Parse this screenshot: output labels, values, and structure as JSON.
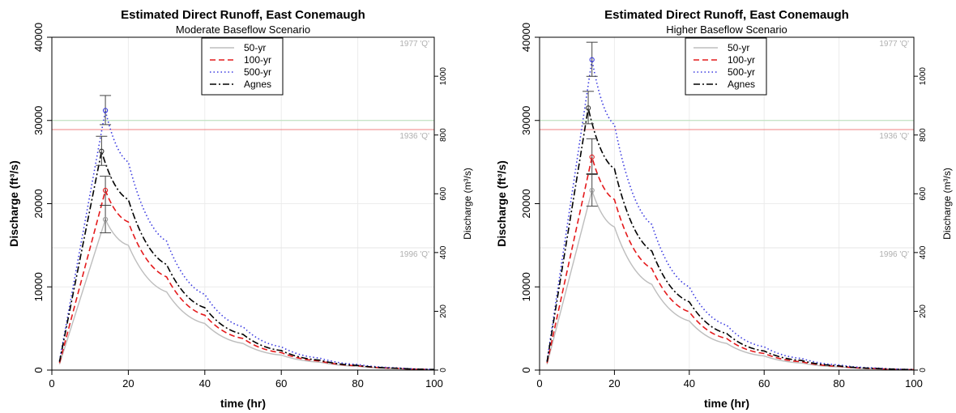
{
  "chart_data": [
    {
      "type": "line",
      "title": "Estimated Direct Runoff, East Conemaugh",
      "subtitle": "Moderate Baseflow Scenario",
      "xlabel": "time (hr)",
      "ylabel": "Discharge (ft³/s)",
      "ylabel_right": "Discharge (m³/s)",
      "xlim": [
        0,
        100
      ],
      "ylim": [
        0,
        40000
      ],
      "x_ticks": [
        "0",
        "20",
        "40",
        "60",
        "80",
        "100"
      ],
      "y_ticks": [
        "0",
        "10000",
        "20000",
        "30000",
        "40000"
      ],
      "y_right_ticks": [
        "0",
        "200",
        "400",
        "600",
        "800",
        "1000"
      ],
      "grid": true,
      "legend_position": "top-center",
      "reference_lines": [
        {
          "label": "1977 'Q'",
          "value": 40000,
          "color": "#a89480"
        },
        {
          "label": "1936 'Q'",
          "value": 28900,
          "color": "#f08080"
        },
        {
          "label": "",
          "value": 30000,
          "color": "#b8e0b8"
        },
        {
          "label": "1996 'Q'",
          "value": 14700,
          "color": "#e4e4e4"
        }
      ],
      "series": [
        {
          "name": "50-yr",
          "color": "#bdbdbd",
          "style": "solid",
          "peak": 18100,
          "points": [
            [
              2,
              700
            ],
            [
              14,
              18100
            ],
            [
              20,
              15000
            ],
            [
              30,
              9400
            ],
            [
              40,
              5600
            ],
            [
              50,
              3200
            ],
            [
              60,
              1800
            ],
            [
              70,
              950
            ],
            [
              80,
              450
            ],
            [
              90,
              180
            ],
            [
              100,
              50
            ]
          ]
        },
        {
          "name": "100-yr",
          "color": "#e41a1c",
          "style": "dashed",
          "peak": 21600,
          "points": [
            [
              2,
              850
            ],
            [
              14,
              21600
            ],
            [
              20,
              17800
            ],
            [
              30,
              11200
            ],
            [
              40,
              6600
            ],
            [
              50,
              3800
            ],
            [
              60,
              2100
            ],
            [
              70,
              1100
            ],
            [
              80,
              520
            ],
            [
              90,
              220
            ],
            [
              100,
              60
            ]
          ]
        },
        {
          "name": "500-yr",
          "color": "#3a3ae0",
          "style": "dotted",
          "peak": 31200,
          "points": [
            [
              2,
              1100
            ],
            [
              14,
              31200
            ],
            [
              20,
              25000
            ],
            [
              30,
              15500
            ],
            [
              40,
              9100
            ],
            [
              50,
              5200
            ],
            [
              60,
              2800
            ],
            [
              70,
              1450
            ],
            [
              80,
              680
            ],
            [
              90,
              280
            ],
            [
              100,
              80
            ]
          ]
        },
        {
          "name": "Agnes",
          "color": "#000000",
          "style": "dashdot",
          "peak": 26300,
          "points": [
            [
              2,
              1000
            ],
            [
              13,
              26300
            ],
            [
              20,
              20500
            ],
            [
              30,
              12700
            ],
            [
              40,
              7500
            ],
            [
              50,
              4300
            ],
            [
              60,
              2350
            ],
            [
              70,
              1200
            ],
            [
              80,
              560
            ],
            [
              90,
              230
            ],
            [
              100,
              70
            ]
          ]
        }
      ],
      "peak_markers": [
        {
          "x": 14,
          "y": 18100,
          "err_low": 16500,
          "err_high": 19800,
          "color": "#999999"
        },
        {
          "x": 14,
          "y": 21600,
          "err_low": 19800,
          "err_high": 23300,
          "color": "#e41a1c"
        },
        {
          "x": 14,
          "y": 31200,
          "err_low": 29500,
          "err_high": 33000,
          "color": "#3a3ae0"
        },
        {
          "x": 13,
          "y": 26300,
          "err_low": 24600,
          "err_high": 28100,
          "color": "#333333"
        }
      ]
    },
    {
      "type": "line",
      "title": "Estimated Direct Runoff, East Conemaugh",
      "subtitle": "Higher Baseflow Scenario",
      "xlabel": "time (hr)",
      "ylabel": "Discharge (ft³/s)",
      "ylabel_right": "Discharge (m³/s)",
      "xlim": [
        0,
        100
      ],
      "ylim": [
        0,
        40000
      ],
      "x_ticks": [
        "0",
        "20",
        "40",
        "60",
        "80",
        "100"
      ],
      "y_ticks": [
        "0",
        "10000",
        "20000",
        "30000",
        "40000"
      ],
      "y_right_ticks": [
        "0",
        "200",
        "400",
        "600",
        "800",
        "1000"
      ],
      "grid": true,
      "legend_position": "top-center",
      "reference_lines": [
        {
          "label": "1977 'Q'",
          "value": 40000,
          "color": "#a89480"
        },
        {
          "label": "1936 'Q'",
          "value": 28900,
          "color": "#f08080"
        },
        {
          "label": "",
          "value": 30000,
          "color": "#b8e0b8"
        },
        {
          "label": "1996 'Q'",
          "value": 14700,
          "color": "#e4e4e4"
        }
      ],
      "series": [
        {
          "name": "50-yr",
          "color": "#bdbdbd",
          "style": "solid",
          "peak": 21600,
          "points": [
            [
              2,
              700
            ],
            [
              14,
              21600
            ],
            [
              20,
              17200
            ],
            [
              30,
              10300
            ],
            [
              40,
              5900
            ],
            [
              50,
              3200
            ],
            [
              60,
              1700
            ],
            [
              70,
              850
            ],
            [
              80,
              380
            ],
            [
              90,
              150
            ],
            [
              100,
              40
            ]
          ]
        },
        {
          "name": "100-yr",
          "color": "#e41a1c",
          "style": "dashed",
          "peak": 25600,
          "points": [
            [
              2,
              850
            ],
            [
              14,
              25600
            ],
            [
              20,
              20500
            ],
            [
              30,
              12200
            ],
            [
              40,
              7000
            ],
            [
              50,
              3800
            ],
            [
              60,
              2000
            ],
            [
              70,
              1000
            ],
            [
              80,
              450
            ],
            [
              90,
              180
            ],
            [
              100,
              50
            ]
          ]
        },
        {
          "name": "500-yr",
          "color": "#3a3ae0",
          "style": "dotted",
          "peak": 37300,
          "points": [
            [
              2,
              1100
            ],
            [
              14,
              37300
            ],
            [
              20,
              29500
            ],
            [
              30,
              17500
            ],
            [
              40,
              10000
            ],
            [
              50,
              5400
            ],
            [
              60,
              2800
            ],
            [
              70,
              1400
            ],
            [
              80,
              620
            ],
            [
              90,
              250
            ],
            [
              100,
              70
            ]
          ]
        },
        {
          "name": "Agnes",
          "color": "#000000",
          "style": "dashdot",
          "peak": 31500,
          "points": [
            [
              2,
              1000
            ],
            [
              13,
              31500
            ],
            [
              20,
              24200
            ],
            [
              30,
              14300
            ],
            [
              40,
              8200
            ],
            [
              50,
              4400
            ],
            [
              60,
              2300
            ],
            [
              70,
              1150
            ],
            [
              80,
              510
            ],
            [
              90,
              200
            ],
            [
              100,
              60
            ]
          ]
        }
      ],
      "peak_markers": [
        {
          "x": 14,
          "y": 21600,
          "err_low": 19700,
          "err_high": 23600,
          "color": "#999999"
        },
        {
          "x": 14,
          "y": 25600,
          "err_low": 23500,
          "err_high": 27800,
          "color": "#e41a1c"
        },
        {
          "x": 14,
          "y": 37300,
          "err_low": 35300,
          "err_high": 39400,
          "color": "#3a3ae0"
        },
        {
          "x": 13,
          "y": 31500,
          "err_low": 29600,
          "err_high": 33500,
          "color": "#333333"
        }
      ]
    }
  ]
}
